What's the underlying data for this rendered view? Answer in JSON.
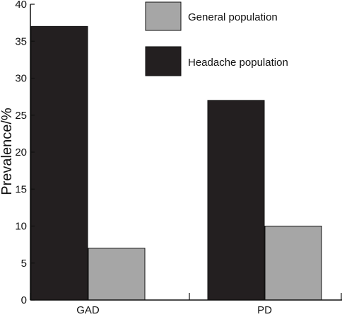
{
  "chart_data": {
    "type": "bar",
    "categories": [
      "GAD",
      "PD"
    ],
    "series": [
      {
        "name": "Headache population",
        "values": [
          37,
          27
        ],
        "color": "#231f20"
      },
      {
        "name": "General population",
        "values": [
          7,
          10
        ],
        "color": "#a6a6a6"
      }
    ],
    "xlabel": "",
    "ylabel": "Prevalence/%",
    "ylim": [
      0,
      40
    ],
    "yticks": [
      0,
      5,
      10,
      15,
      20,
      25,
      30,
      35,
      40
    ],
    "grid": false,
    "legend": {
      "placement": "top-right",
      "entries": [
        {
          "label": "General population",
          "color": "#a6a6a6"
        },
        {
          "label": "Headache population",
          "color": "#231f20"
        }
      ]
    }
  }
}
